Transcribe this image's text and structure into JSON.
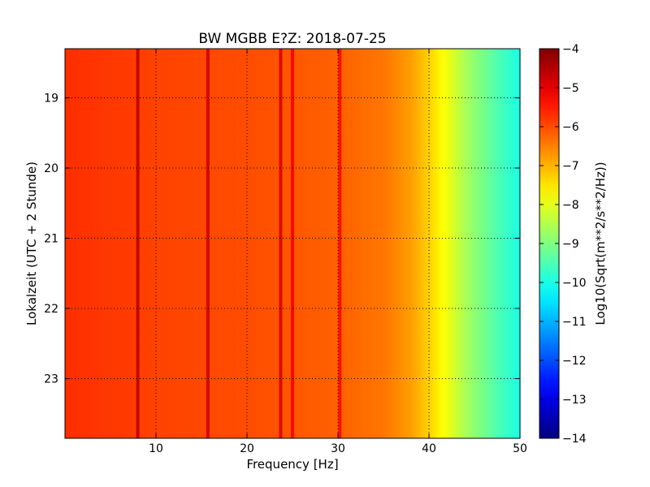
{
  "chart_data": {
    "type": "heatmap",
    "title": "BW MGBB E?Z: 2018-07-25",
    "xlabel": "Frequency [Hz]",
    "ylabel": "Lokalzeit (UTC + 2 Stunde)",
    "xlim": [
      0,
      50
    ],
    "ylim_hours": [
      18.3,
      23.85
    ],
    "x_ticks": [
      10,
      20,
      30,
      40,
      50
    ],
    "y_ticks": [
      19,
      20,
      21,
      22,
      23
    ],
    "grid": true,
    "colormap": "jet",
    "colorbar": {
      "label": "Log10(Sqrt(m**2/s**2/Hz))",
      "range": [
        -14,
        -4
      ],
      "ticks": [
        -4,
        -5,
        -6,
        -7,
        -8,
        -9,
        -10,
        -11,
        -12,
        -13,
        -14
      ]
    },
    "frequency_profile": [
      {
        "hz": 0,
        "value": -5.7
      },
      {
        "hz": 5,
        "value": -5.8
      },
      {
        "hz": 10,
        "value": -5.9
      },
      {
        "hz": 20,
        "value": -6.0
      },
      {
        "hz": 30,
        "value": -6.2
      },
      {
        "hz": 35,
        "value": -6.4
      },
      {
        "hz": 38,
        "value": -6.8
      },
      {
        "hz": 40,
        "value": -7.3
      },
      {
        "hz": 42,
        "value": -7.9
      },
      {
        "hz": 44,
        "value": -8.6
      },
      {
        "hz": 46,
        "value": -9.1
      },
      {
        "hz": 48,
        "value": -9.6
      },
      {
        "hz": 50,
        "value": -10.0
      }
    ],
    "spectral_lines_hz": [
      {
        "hz": 8.0,
        "value": -4.6
      },
      {
        "hz": 15.7,
        "value": -4.8
      },
      {
        "hz": 23.7,
        "value": -4.9
      },
      {
        "hz": 25.0,
        "value": -5.2
      },
      {
        "hz": 30.2,
        "value": -5.3
      }
    ]
  }
}
